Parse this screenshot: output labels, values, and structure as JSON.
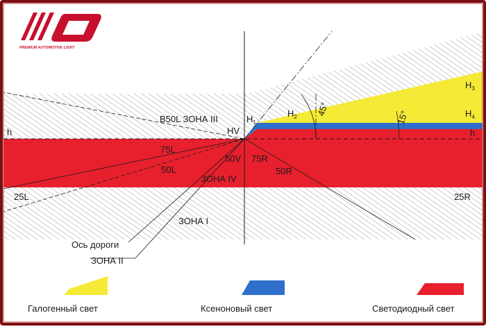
{
  "logo": {
    "tagline": "PREMIUM AUTOMOTIVE LIGHT"
  },
  "zones": {
    "b50l_zone3": "B50L ЗОНА III",
    "zone4": "ЗОНА IV",
    "zone1": "ЗОНА I",
    "zone2": "ЗОНА II",
    "road_axis": "Ось дороги"
  },
  "points": {
    "hv": "HV",
    "h_left": "h",
    "h_right": "h",
    "h1": "H",
    "h1_sub": "1",
    "h2": "H",
    "h2_sub": "2",
    "h3": "H",
    "h3_sub": "3",
    "h4": "H",
    "h4_sub": "4",
    "p75l": "75L",
    "p50l": "50L",
    "p50v": "50V",
    "p75r": "75R",
    "p50r": "50R",
    "p25l": "25L",
    "p25r": "25R"
  },
  "angles": {
    "a45": "45°",
    "a15": "15°"
  },
  "legend": {
    "halogen": "Галогенный свет",
    "xenon": "Ксеноновый свет",
    "led": "Светодиодный свет"
  },
  "colors": {
    "frame": "#7a0f12",
    "red": "#e8202e",
    "yellow": "#f5ea35",
    "blue": "#2e6fcb",
    "hatch": "#9a9a9a"
  }
}
